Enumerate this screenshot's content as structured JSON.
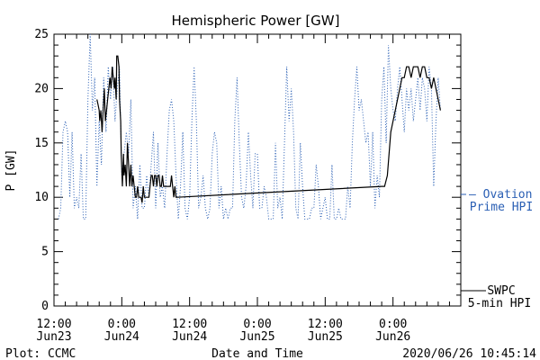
{
  "chart_data": {
    "type": "line",
    "title": "Hemispheric Power [GW]",
    "xlabel": "Date and Time",
    "ylabel": "P [GW]",
    "ylim": [
      0,
      25
    ],
    "yticks": [
      0,
      5,
      10,
      15,
      20,
      25
    ],
    "xlim": [
      -12,
      60
    ],
    "x_unit": "hours relative to 2020-06-24 00:00",
    "xticks": [
      {
        "x": -12,
        "line1": "12:00",
        "line2": "Jun23"
      },
      {
        "x": 0,
        "line1": "0:00",
        "line2": "Jun24"
      },
      {
        "x": 12,
        "line1": "12:00",
        "line2": "Jun24"
      },
      {
        "x": 24,
        "line1": "0:00",
        "line2": "Jun25"
      },
      {
        "x": 36,
        "line1": "12:00",
        "line2": "Jun25"
      },
      {
        "x": 48,
        "line1": "0:00",
        "line2": "Jun26"
      }
    ],
    "series": [
      {
        "name": "SWPC 5-min HPI",
        "legend_line1": "SWPC",
        "legend_line2": "5-min HPI",
        "color": "#000000",
        "style": "solid",
        "points": [
          [
            -4.4,
            19
          ],
          [
            -4.2,
            18.5
          ],
          [
            -4.0,
            18
          ],
          [
            -3.9,
            17
          ],
          [
            -3.7,
            18
          ],
          [
            -3.5,
            16
          ],
          [
            -3.3,
            18
          ],
          [
            -3.1,
            20
          ],
          [
            -2.9,
            17
          ],
          [
            -2.7,
            18
          ],
          [
            -2.5,
            19
          ],
          [
            -2.3,
            20
          ],
          [
            -2.1,
            21
          ],
          [
            -1.9,
            20
          ],
          [
            -1.7,
            22
          ],
          [
            -1.5,
            21
          ],
          [
            -1.3,
            20
          ],
          [
            -1.2,
            21
          ],
          [
            -1.0,
            19
          ],
          [
            -0.9,
            23
          ],
          [
            -0.7,
            23
          ],
          [
            -0.5,
            22
          ],
          [
            -0.4,
            19
          ],
          [
            -0.2,
            17
          ],
          [
            -0.1,
            14
          ],
          [
            0.1,
            11
          ],
          [
            0.3,
            14
          ],
          [
            0.4,
            12
          ],
          [
            0.6,
            13
          ],
          [
            0.8,
            11
          ],
          [
            1.0,
            15
          ],
          [
            1.2,
            13
          ],
          [
            1.4,
            11
          ],
          [
            1.6,
            13
          ],
          [
            1.8,
            11
          ],
          [
            2.0,
            12
          ],
          [
            2.2,
            11
          ],
          [
            2.4,
            10
          ],
          [
            2.6,
            10
          ],
          [
            2.8,
            11
          ],
          [
            3.0,
            10
          ],
          [
            3.2,
            10
          ],
          [
            3.4,
            10
          ],
          [
            3.6,
            9.5
          ],
          [
            3.8,
            11
          ],
          [
            4.0,
            10
          ],
          [
            4.2,
            10
          ],
          [
            4.4,
            10
          ],
          [
            4.6,
            10
          ],
          [
            4.8,
            10
          ],
          [
            5.0,
            11
          ],
          [
            5.2,
            12
          ],
          [
            5.4,
            12
          ],
          [
            5.6,
            11
          ],
          [
            5.8,
            12
          ],
          [
            6.0,
            12
          ],
          [
            6.2,
            11
          ],
          [
            6.4,
            12
          ],
          [
            6.6,
            12
          ],
          [
            6.8,
            11
          ],
          [
            7.0,
            11
          ],
          [
            7.2,
            12
          ],
          [
            7.4,
            11
          ],
          [
            7.6,
            11
          ],
          [
            7.8,
            11
          ],
          [
            8.0,
            11
          ],
          [
            8.2,
            11
          ],
          [
            8.4,
            11
          ],
          [
            8.6,
            11
          ],
          [
            8.8,
            12
          ],
          [
            9.0,
            11
          ],
          [
            9.2,
            10
          ],
          [
            9.4,
            11
          ],
          [
            9.6,
            10
          ],
          [
            9.8,
            10
          ],
          [
            46.0,
            11
          ],
          [
            46.5,
            11
          ],
          [
            47.0,
            12
          ],
          [
            47.3,
            14
          ],
          [
            47.6,
            16
          ],
          [
            48.0,
            17
          ],
          [
            48.4,
            18
          ],
          [
            48.8,
            19
          ],
          [
            49.2,
            20
          ],
          [
            49.6,
            21
          ],
          [
            50.0,
            21
          ],
          [
            50.4,
            22
          ],
          [
            50.8,
            22
          ],
          [
            51.2,
            21
          ],
          [
            51.6,
            22
          ],
          [
            52.0,
            22
          ],
          [
            52.4,
            22
          ],
          [
            52.8,
            21
          ],
          [
            53.2,
            22
          ],
          [
            53.6,
            22
          ],
          [
            54.0,
            21
          ],
          [
            54.4,
            21
          ],
          [
            54.8,
            20
          ],
          [
            55.2,
            21
          ],
          [
            55.6,
            20
          ],
          [
            56.0,
            19
          ],
          [
            56.4,
            18
          ]
        ]
      },
      {
        "name": "Ovation Prime HPI",
        "legend_line1": "— Ovation",
        "legend_line2": "Prime HPI",
        "color": "#2a5fb4",
        "style": "dotted",
        "points": [
          [
            -11.2,
            8
          ],
          [
            -10.8,
            9
          ],
          [
            -10.4,
            16
          ],
          [
            -10.0,
            17
          ],
          [
            -9.6,
            16
          ],
          [
            -9.2,
            10
          ],
          [
            -8.8,
            16
          ],
          [
            -8.4,
            9
          ],
          [
            -8.0,
            10
          ],
          [
            -7.6,
            9
          ],
          [
            -7.2,
            14
          ],
          [
            -6.8,
            8
          ],
          [
            -6.4,
            8
          ],
          [
            -6.0,
            19
          ],
          [
            -5.6,
            25
          ],
          [
            -5.2,
            18
          ],
          [
            -4.8,
            21
          ],
          [
            -4.4,
            11
          ],
          [
            -4.0,
            17
          ],
          [
            -3.6,
            13
          ],
          [
            -3.2,
            21
          ],
          [
            -2.8,
            16
          ],
          [
            -2.4,
            22
          ],
          [
            -2.0,
            19
          ],
          [
            -1.6,
            22
          ],
          [
            -1.2,
            17
          ],
          [
            -0.8,
            20
          ],
          [
            -0.4,
            22
          ],
          [
            0.0,
            12
          ],
          [
            0.4,
            14
          ],
          [
            0.8,
            16
          ],
          [
            1.2,
            14
          ],
          [
            1.6,
            19
          ],
          [
            2.0,
            9
          ],
          [
            2.4,
            11
          ],
          [
            2.8,
            8
          ],
          [
            3.2,
            13
          ],
          [
            3.6,
            9
          ],
          [
            4.0,
            9
          ],
          [
            4.4,
            12
          ],
          [
            4.8,
            10
          ],
          [
            5.2,
            13
          ],
          [
            5.6,
            16
          ],
          [
            6.0,
            9
          ],
          [
            6.4,
            15
          ],
          [
            6.8,
            10
          ],
          [
            7.2,
            11
          ],
          [
            7.6,
            9
          ],
          [
            8.0,
            14
          ],
          [
            8.4,
            18
          ],
          [
            8.8,
            19
          ],
          [
            9.2,
            17
          ],
          [
            9.6,
            12
          ],
          [
            10.0,
            8
          ],
          [
            10.4,
            11
          ],
          [
            10.8,
            16
          ],
          [
            11.2,
            9
          ],
          [
            11.6,
            8
          ],
          [
            12.0,
            10
          ],
          [
            12.4,
            17
          ],
          [
            12.8,
            22
          ],
          [
            13.2,
            17
          ],
          [
            13.6,
            9
          ],
          [
            14.0,
            10
          ],
          [
            14.4,
            12
          ],
          [
            14.8,
            9
          ],
          [
            15.2,
            8
          ],
          [
            15.6,
            9
          ],
          [
            16.0,
            14
          ],
          [
            16.4,
            16
          ],
          [
            16.8,
            15
          ],
          [
            17.2,
            9
          ],
          [
            17.6,
            11
          ],
          [
            18.0,
            8
          ],
          [
            18.4,
            9
          ],
          [
            18.8,
            8
          ],
          [
            19.2,
            9
          ],
          [
            19.6,
            9
          ],
          [
            20.0,
            17
          ],
          [
            20.4,
            21
          ],
          [
            20.8,
            15
          ],
          [
            21.2,
            10
          ],
          [
            21.6,
            9
          ],
          [
            22.0,
            11
          ],
          [
            22.4,
            16
          ],
          [
            22.8,
            12
          ],
          [
            23.2,
            9
          ],
          [
            23.6,
            14
          ],
          [
            24.0,
            14
          ],
          [
            24.4,
            9
          ],
          [
            24.8,
            9
          ],
          [
            25.2,
            11
          ],
          [
            25.6,
            10
          ],
          [
            26.0,
            8
          ],
          [
            26.4,
            8
          ],
          [
            26.8,
            8
          ],
          [
            27.2,
            15
          ],
          [
            27.6,
            9
          ],
          [
            28.0,
            10
          ],
          [
            28.4,
            8
          ],
          [
            28.8,
            15
          ],
          [
            29.2,
            22
          ],
          [
            29.6,
            17
          ],
          [
            30.0,
            20
          ],
          [
            30.4,
            16
          ],
          [
            30.8,
            9
          ],
          [
            31.2,
            8
          ],
          [
            31.6,
            15
          ],
          [
            32.0,
            11
          ],
          [
            32.4,
            8
          ],
          [
            32.8,
            8
          ],
          [
            33.2,
            8
          ],
          [
            33.6,
            9
          ],
          [
            34.0,
            9
          ],
          [
            34.4,
            13
          ],
          [
            34.8,
            11
          ],
          [
            35.2,
            8
          ],
          [
            35.6,
            9
          ],
          [
            36.0,
            10
          ],
          [
            36.4,
            8
          ],
          [
            36.8,
            8
          ],
          [
            37.2,
            13
          ],
          [
            37.6,
            8
          ],
          [
            38.0,
            8
          ],
          [
            38.4,
            9
          ],
          [
            38.8,
            8
          ],
          [
            39.2,
            8
          ],
          [
            39.6,
            8
          ],
          [
            40.0,
            11
          ],
          [
            40.4,
            9
          ],
          [
            40.8,
            15
          ],
          [
            41.2,
            19
          ],
          [
            41.6,
            22
          ],
          [
            42.0,
            18
          ],
          [
            42.4,
            19
          ],
          [
            42.8,
            17
          ],
          [
            43.2,
            15
          ],
          [
            43.6,
            16
          ],
          [
            44.0,
            11
          ],
          [
            44.4,
            16
          ],
          [
            44.8,
            9
          ],
          [
            45.2,
            12
          ],
          [
            45.6,
            10
          ],
          [
            46.0,
            19
          ],
          [
            46.4,
            22
          ],
          [
            46.8,
            15
          ],
          [
            47.2,
            24
          ],
          [
            47.6,
            20
          ],
          [
            48.0,
            18
          ],
          [
            48.4,
            17
          ],
          [
            48.8,
            20
          ],
          [
            49.2,
            22
          ],
          [
            49.6,
            19
          ],
          [
            50.0,
            16
          ],
          [
            50.4,
            20
          ],
          [
            50.8,
            18
          ],
          [
            51.2,
            20
          ],
          [
            51.6,
            17
          ],
          [
            52.0,
            19
          ],
          [
            52.4,
            21
          ],
          [
            52.8,
            18
          ],
          [
            53.2,
            21
          ],
          [
            53.6,
            20
          ],
          [
            54.0,
            17
          ],
          [
            54.4,
            22
          ],
          [
            54.8,
            20
          ],
          [
            55.2,
            11
          ],
          [
            55.6,
            17
          ],
          [
            56.0,
            21
          ],
          [
            56.4,
            18
          ]
        ]
      }
    ]
  },
  "footer": {
    "left": "Plot: CCMC",
    "right": "2020/06/26 10:45:14"
  }
}
